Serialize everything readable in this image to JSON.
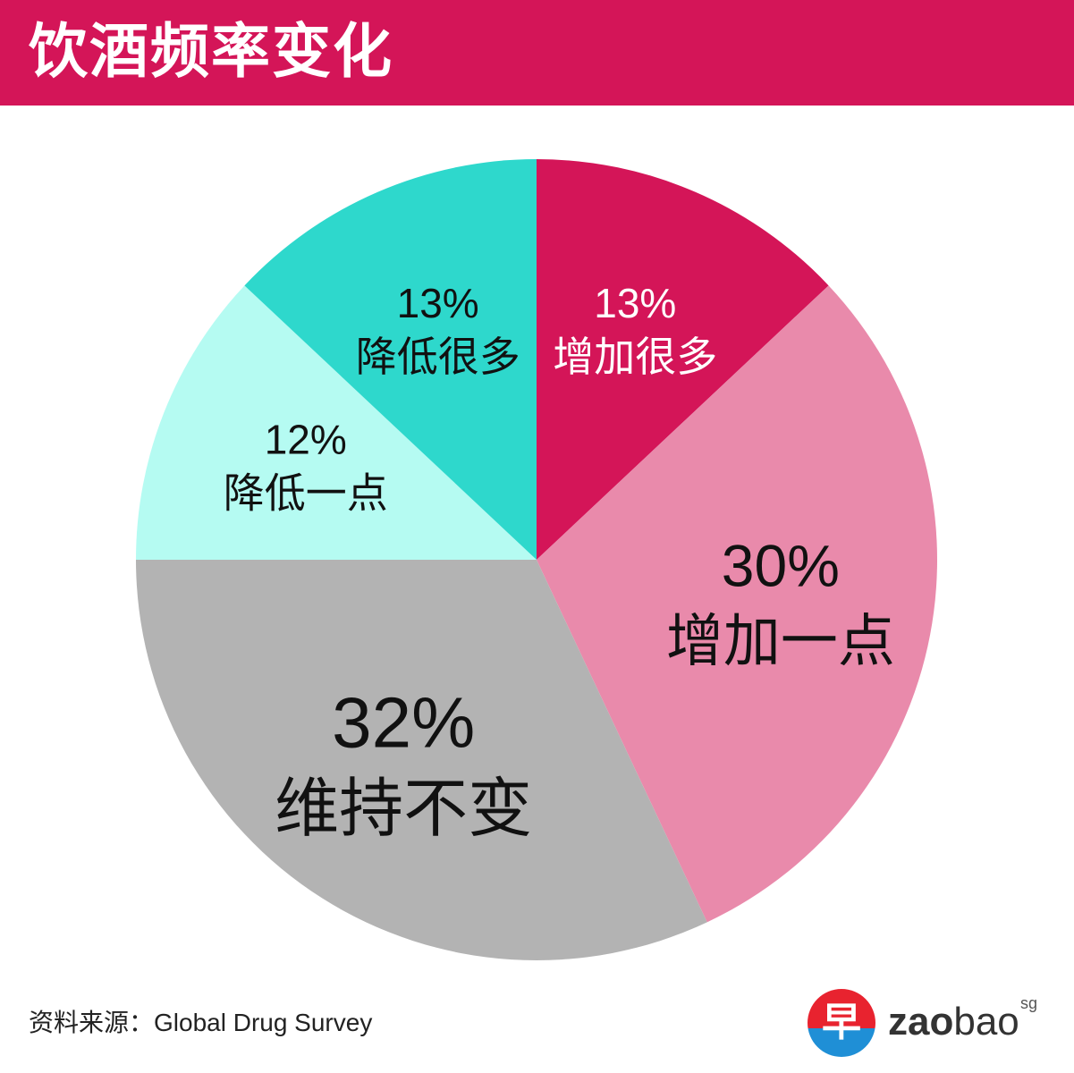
{
  "header": {
    "title": "饮酒频率变化"
  },
  "chart_data": {
    "type": "pie",
    "title": "饮酒频率变化",
    "start": "12 o'clock",
    "direction": "clockwise",
    "slices": [
      {
        "label": "增加很多",
        "value": 13,
        "percent_label": "13%",
        "color": "#d41558",
        "text_color": "#ffffff"
      },
      {
        "label": "增加一点",
        "value": 30,
        "percent_label": "30%",
        "color": "#e98aab",
        "text_color": "#111111"
      },
      {
        "label": "维持不变",
        "value": 32,
        "percent_label": "32%",
        "color": "#b3b3b3",
        "text_color": "#111111"
      },
      {
        "label": "降低一点",
        "value": 12,
        "percent_label": "12%",
        "color": "#b5fbf2",
        "text_color": "#111111"
      },
      {
        "label": "降低很多",
        "value": 13,
        "percent_label": "13%",
        "color": "#2ed8cc",
        "text_color": "#111111"
      }
    ]
  },
  "footer": {
    "source": "资料来源：Global Drug Survey",
    "logo": {
      "glyph": "早",
      "word_bold": "zao",
      "word_light": "bao",
      "superscript": "sg",
      "badge_colors": [
        "#e8232f",
        "#1f8fd6"
      ]
    }
  }
}
